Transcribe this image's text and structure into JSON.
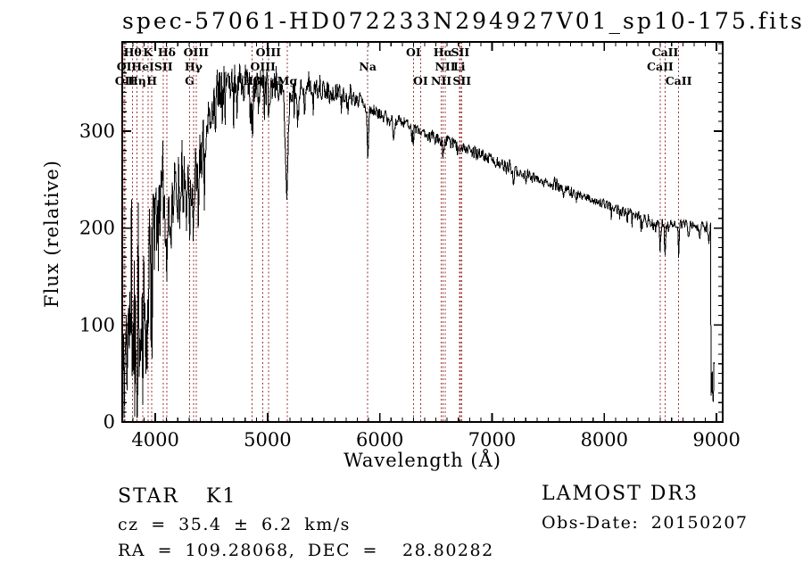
{
  "chart_data": {
    "type": "line",
    "title": "spec-57061-HD072233N294927V01_sp10-175.fits",
    "xlabel": "Wavelength (Å)",
    "ylabel": "Flux (relative)",
    "xlim": [
      3705,
      9055
    ],
    "ylim": [
      0,
      392
    ],
    "x_ticks": [
      4000,
      5000,
      6000,
      7000,
      8000,
      9000
    ],
    "y_ticks": [
      0,
      100,
      200,
      300
    ],
    "x_minor_step": 100,
    "y_minor_step": 10,
    "grid": false,
    "legend": "none",
    "spectrum_color": "#000000",
    "marker_color": "#993333",
    "spectral_lines": [
      {
        "label": "Hθ",
        "wavelength": 3798,
        "row": 1
      },
      {
        "label": "K",
        "wavelength": 3934,
        "row": 1
      },
      {
        "label": "Hδ",
        "wavelength": 4102,
        "row": 1
      },
      {
        "label": "OIII",
        "wavelength": 4363,
        "row": 1
      },
      {
        "label": "OIII",
        "wavelength": 5007,
        "row": 1
      },
      {
        "label": "OI",
        "wavelength": 6300,
        "row": 1
      },
      {
        "label": "Hα",
        "wavelength": 6563,
        "row": 1
      },
      {
        "label": "SII",
        "wavelength": 6717,
        "row": 1
      },
      {
        "label": "CaII",
        "wavelength": 8542,
        "row": 1
      },
      {
        "label": "OI",
        "wavelength": 3722,
        "row": 2
      },
      {
        "label": "HeI",
        "wavelength": 3889,
        "row": 2
      },
      {
        "label": "SII",
        "wavelength": 4072,
        "row": 2
      },
      {
        "label": "Hγ",
        "wavelength": 4340,
        "row": 2
      },
      {
        "label": "OIII",
        "wavelength": 4959,
        "row": 2
      },
      {
        "label": "Na",
        "wavelength": 5893,
        "row": 2
      },
      {
        "label": "NII",
        "wavelength": 6583,
        "row": 2
      },
      {
        "label": "Li",
        "wavelength": 6708,
        "row": 2
      },
      {
        "label": "CaII",
        "wavelength": 8498,
        "row": 2
      },
      {
        "label": "OII",
        "wavelength": 3729,
        "row": 3
      },
      {
        "label": "Hη",
        "wavelength": 3835,
        "row": 3
      },
      {
        "label": "H",
        "wavelength": 3969,
        "row": 3
      },
      {
        "label": "G",
        "wavelength": 4305,
        "row": 3
      },
      {
        "label": "Hβ",
        "wavelength": 4861,
        "row": 3
      },
      {
        "label": "Mg",
        "wavelength": 5175,
        "row": 3
      },
      {
        "label": "OI",
        "wavelength": 6363,
        "row": 3
      },
      {
        "label": "NII",
        "wavelength": 6548,
        "row": 3
      },
      {
        "label": "SII",
        "wavelength": 6731,
        "row": 3
      },
      {
        "label": "CaII",
        "wavelength": 8662,
        "row": 3
      }
    ],
    "continuum": [
      [
        3705,
        55
      ],
      [
        3720,
        85
      ],
      [
        3740,
        115
      ],
      [
        3760,
        140
      ],
      [
        3790,
        155
      ],
      [
        3820,
        140
      ],
      [
        3850,
        150
      ],
      [
        3880,
        160
      ],
      [
        3910,
        155
      ],
      [
        3940,
        175
      ],
      [
        3970,
        185
      ],
      [
        4000,
        215
      ],
      [
        4040,
        235
      ],
      [
        4080,
        235
      ],
      [
        4120,
        230
      ],
      [
        4160,
        240
      ],
      [
        4200,
        240
      ],
      [
        4250,
        245
      ],
      [
        4300,
        252
      ],
      [
        4350,
        258
      ],
      [
        4400,
        272
      ],
      [
        4450,
        298
      ],
      [
        4500,
        325
      ],
      [
        4550,
        342
      ],
      [
        4600,
        348
      ],
      [
        4650,
        352
      ],
      [
        4700,
        354
      ],
      [
        4750,
        352
      ],
      [
        4800,
        350
      ],
      [
        4850,
        346
      ],
      [
        4900,
        348
      ],
      [
        4950,
        350
      ],
      [
        5000,
        350
      ],
      [
        5050,
        348
      ],
      [
        5100,
        345
      ],
      [
        5150,
        342
      ],
      [
        5200,
        340
      ],
      [
        5250,
        341
      ],
      [
        5300,
        342
      ],
      [
        5350,
        344
      ],
      [
        5400,
        344
      ],
      [
        5450,
        343
      ],
      [
        5500,
        342
      ],
      [
        5550,
        341
      ],
      [
        5600,
        340
      ],
      [
        5650,
        339
      ],
      [
        5700,
        337
      ],
      [
        5750,
        335
      ],
      [
        5800,
        333
      ],
      [
        5850,
        330
      ],
      [
        5900,
        324
      ],
      [
        5950,
        320
      ],
      [
        6000,
        317
      ],
      [
        6100,
        312
      ],
      [
        6200,
        308
      ],
      [
        6300,
        304
      ],
      [
        6400,
        298
      ],
      [
        6500,
        293
      ],
      [
        6600,
        289
      ],
      [
        6700,
        285
      ],
      [
        6800,
        280
      ],
      [
        6900,
        276
      ],
      [
        7000,
        271
      ],
      [
        7100,
        264
      ],
      [
        7200,
        259
      ],
      [
        7300,
        256
      ],
      [
        7400,
        251
      ],
      [
        7500,
        246
      ],
      [
        7600,
        242
      ],
      [
        7700,
        238
      ],
      [
        7800,
        233
      ],
      [
        7900,
        229
      ],
      [
        8000,
        225
      ],
      [
        8100,
        220
      ],
      [
        8200,
        216
      ],
      [
        8300,
        212
      ],
      [
        8400,
        208
      ],
      [
        8500,
        205
      ],
      [
        8600,
        203
      ],
      [
        8700,
        202
      ],
      [
        8800,
        203
      ],
      [
        8900,
        201
      ],
      [
        9015,
        198
      ]
    ],
    "noise_profile": [
      [
        3705,
        35
      ],
      [
        3730,
        55
      ],
      [
        3760,
        70
      ],
      [
        3800,
        85
      ],
      [
        3850,
        90
      ],
      [
        3900,
        85
      ],
      [
        3950,
        75
      ],
      [
        4000,
        55
      ],
      [
        4050,
        40
      ],
      [
        4100,
        40
      ],
      [
        4200,
        35
      ],
      [
        4300,
        35
      ],
      [
        4400,
        30
      ],
      [
        4500,
        25
      ],
      [
        4600,
        22
      ],
      [
        4700,
        21
      ],
      [
        4800,
        20
      ],
      [
        4900,
        18
      ],
      [
        5000,
        16
      ],
      [
        5100,
        15
      ],
      [
        5200,
        13
      ],
      [
        5300,
        12
      ],
      [
        5400,
        11
      ],
      [
        5500,
        10
      ],
      [
        5700,
        9
      ],
      [
        5900,
        8
      ],
      [
        6100,
        8
      ],
      [
        6300,
        7
      ],
      [
        6500,
        7
      ],
      [
        6800,
        6
      ],
      [
        7200,
        6
      ],
      [
        7600,
        5
      ],
      [
        8000,
        5
      ],
      [
        8300,
        6
      ],
      [
        8600,
        6
      ],
      [
        8900,
        7
      ],
      [
        9015,
        7
      ]
    ],
    "absorption_dips": [
      [
        3725,
        50,
        6
      ],
      [
        3750,
        55,
        7
      ],
      [
        3770,
        60,
        6
      ],
      [
        3798,
        70,
        7
      ],
      [
        3820,
        55,
        6
      ],
      [
        3835,
        95,
        7
      ],
      [
        3865,
        60,
        6
      ],
      [
        3889,
        80,
        7
      ],
      [
        3910,
        50,
        6
      ],
      [
        3934,
        85,
        7
      ],
      [
        3969,
        80,
        7
      ],
      [
        4026,
        35,
        6
      ],
      [
        4102,
        75,
        8
      ],
      [
        4144,
        35,
        6
      ],
      [
        4227,
        45,
        6
      ],
      [
        4271,
        35,
        6
      ],
      [
        4305,
        50,
        8
      ],
      [
        4341,
        60,
        7
      ],
      [
        4383,
        45,
        6
      ],
      [
        4455,
        30,
        6
      ],
      [
        4531,
        25,
        6
      ],
      [
        4668,
        25,
        6
      ],
      [
        4861,
        55,
        7
      ],
      [
        4920,
        25,
        6
      ],
      [
        5015,
        20,
        6
      ],
      [
        5170,
        100,
        12
      ],
      [
        5270,
        30,
        7
      ],
      [
        5329,
        18,
        6
      ],
      [
        5405,
        18,
        6
      ],
      [
        5712,
        15,
        6
      ],
      [
        5893,
        60,
        6
      ],
      [
        6122,
        15,
        5
      ],
      [
        6300,
        10,
        4
      ],
      [
        6495,
        12,
        5
      ],
      [
        6563,
        20,
        5
      ],
      [
        7190,
        10,
        6
      ],
      [
        8205,
        10,
        5
      ],
      [
        8434,
        10,
        4
      ],
      [
        8498,
        30,
        5
      ],
      [
        8542,
        35,
        5
      ],
      [
        8662,
        32,
        5
      ],
      [
        8750,
        15,
        4
      ],
      [
        8850,
        12,
        4
      ],
      [
        8930,
        14,
        4
      ]
    ],
    "end_drop": {
      "wavelength": 8950,
      "tail_flux": 40
    },
    "spectrum_end": 8985,
    "sample_step": 5,
    "seed": 11
  },
  "footer": {
    "class_label": "STAR",
    "subclass": "K1",
    "cz": "cz = 35.4 ± 6.2 km/s",
    "radec": "RA = 109.28068, DEC =  28.80282",
    "survey": "LAMOST DR3",
    "obs_date": "Obs-Date: 20150207"
  },
  "colors": {
    "background": "#ffffff",
    "axes": "#000000",
    "spectrum": "#000000",
    "line_markers": "#993333",
    "text": "#000000"
  }
}
